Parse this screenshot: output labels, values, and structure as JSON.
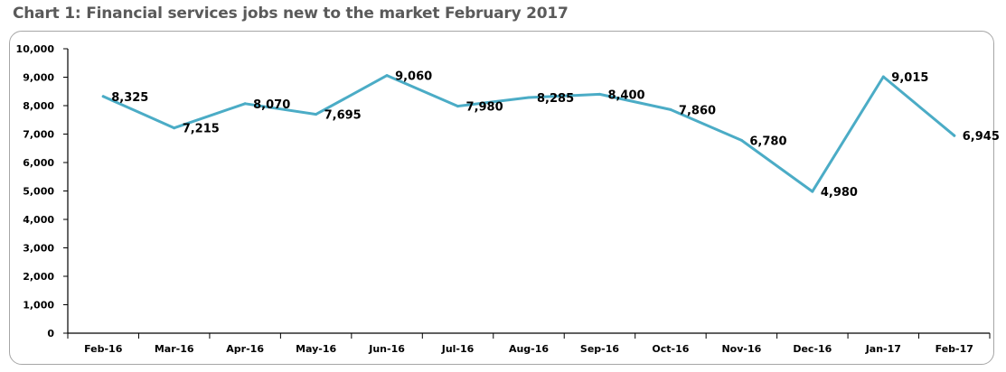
{
  "title": "Chart 1: Financial services jobs new to the market February 2017",
  "chart_data": {
    "type": "line",
    "title": "Chart 1: Financial services jobs new to the market February 2017",
    "xlabel": "",
    "ylabel": "",
    "categories": [
      "Feb-16",
      "Mar-16",
      "Apr-16",
      "May-16",
      "Jun-16",
      "Jul-16",
      "Aug-16",
      "Sep-16",
      "Oct-16",
      "Nov-16",
      "Dec-16",
      "Jan-17",
      "Feb-17"
    ],
    "values": [
      8325,
      7215,
      8070,
      7695,
      9060,
      7980,
      8285,
      8400,
      7860,
      6780,
      4980,
      9015,
      6945
    ],
    "value_labels": [
      "8,325",
      "7,215",
      "8,070",
      "7,695",
      "9,060",
      "7,980",
      "8,285",
      "8,400",
      "7,860",
      "6,780",
      "4,980",
      "9,015",
      "6,945"
    ],
    "y_ticks": [
      "0",
      "1,000",
      "2,000",
      "3,000",
      "4,000",
      "5,000",
      "6,000",
      "7,000",
      "8,000",
      "9,000",
      "10,000"
    ],
    "ylim": [
      0,
      10000
    ],
    "grid": false,
    "legend": "none",
    "line_color": "#4bacc6"
  }
}
